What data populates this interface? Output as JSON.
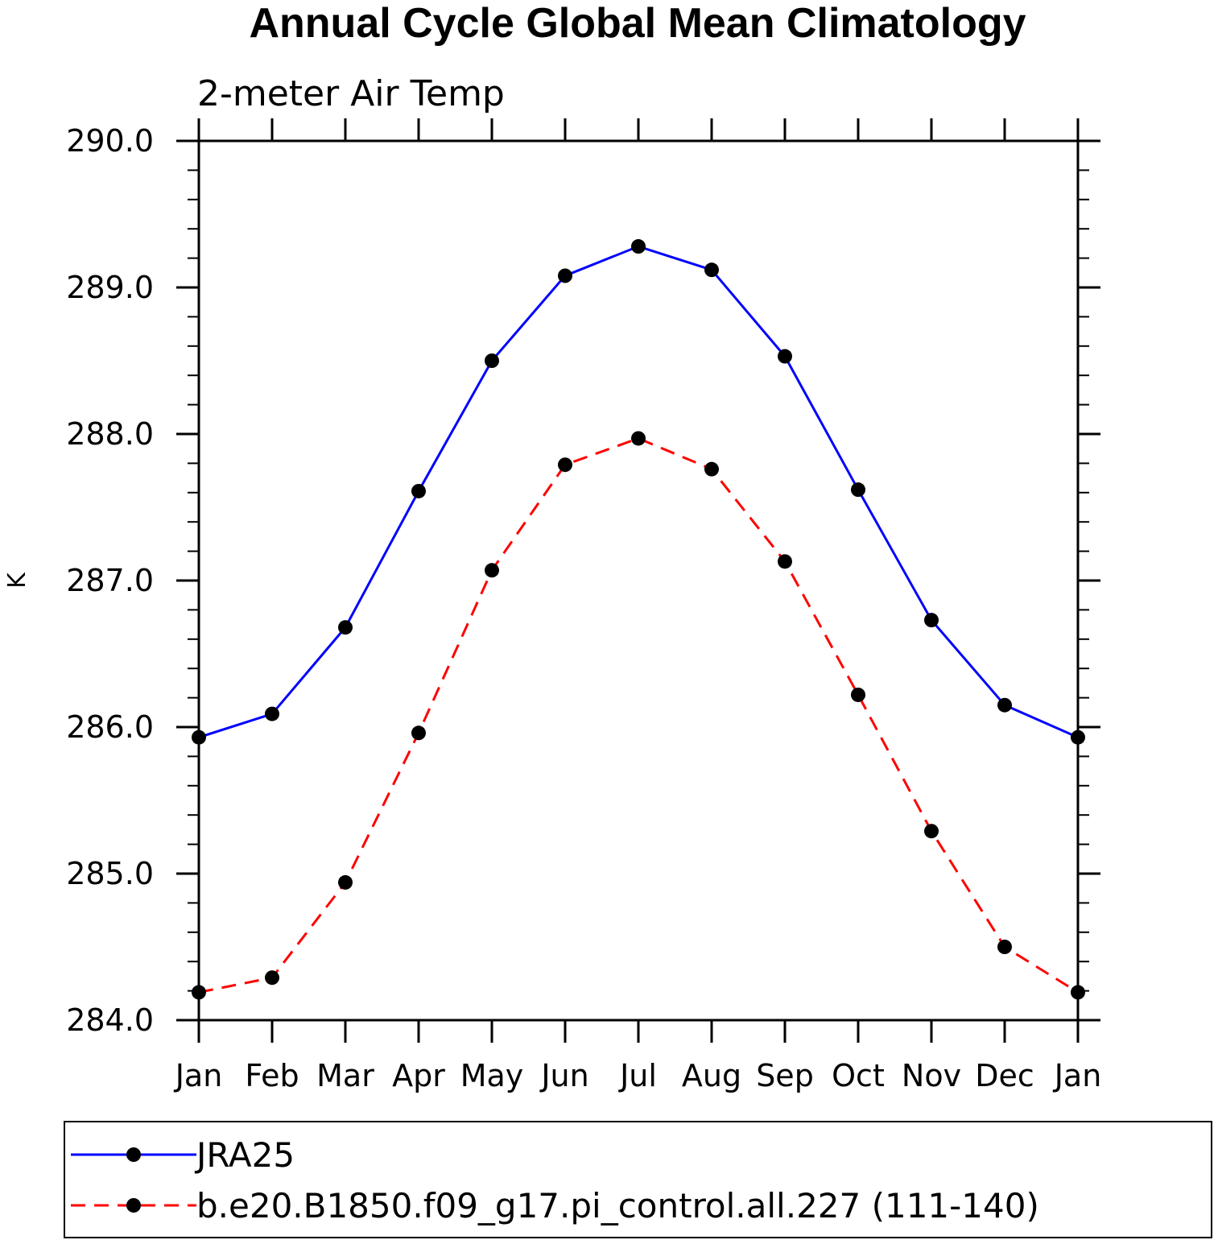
{
  "chart_data": {
    "type": "line",
    "title": "Annual Cycle Global Mean Climatology",
    "subtitle": "2-meter Air Temp",
    "xlabel": "",
    "ylabel": "K",
    "categories": [
      "Jan",
      "Feb",
      "Mar",
      "Apr",
      "May",
      "Jun",
      "Jul",
      "Aug",
      "Sep",
      "Oct",
      "Nov",
      "Dec",
      "Jan"
    ],
    "y_ticks": [
      "284.0",
      "285.0",
      "286.0",
      "287.0",
      "288.0",
      "289.0",
      "290.0"
    ],
    "ylim": [
      284.0,
      290.0
    ],
    "y_minor_step": 0.2,
    "grid": false,
    "legend_position": "bottom",
    "series": [
      {
        "name": "JRA25",
        "color": "#0000ff",
        "line_style": "solid",
        "marker": "filled-circle",
        "values": [
          285.93,
          286.09,
          286.68,
          287.61,
          288.5,
          289.08,
          289.28,
          289.12,
          288.53,
          287.62,
          286.73,
          286.15,
          285.93
        ]
      },
      {
        "name": "b.e20.B1850.f09_g17.pi_control.all.227 (111-140)",
        "color": "#ff0000",
        "line_style": "dashed",
        "marker": "filled-circle",
        "values": [
          284.19,
          284.29,
          284.94,
          285.96,
          287.07,
          287.79,
          287.97,
          287.76,
          287.13,
          286.22,
          285.29,
          284.5,
          284.19
        ]
      }
    ]
  }
}
